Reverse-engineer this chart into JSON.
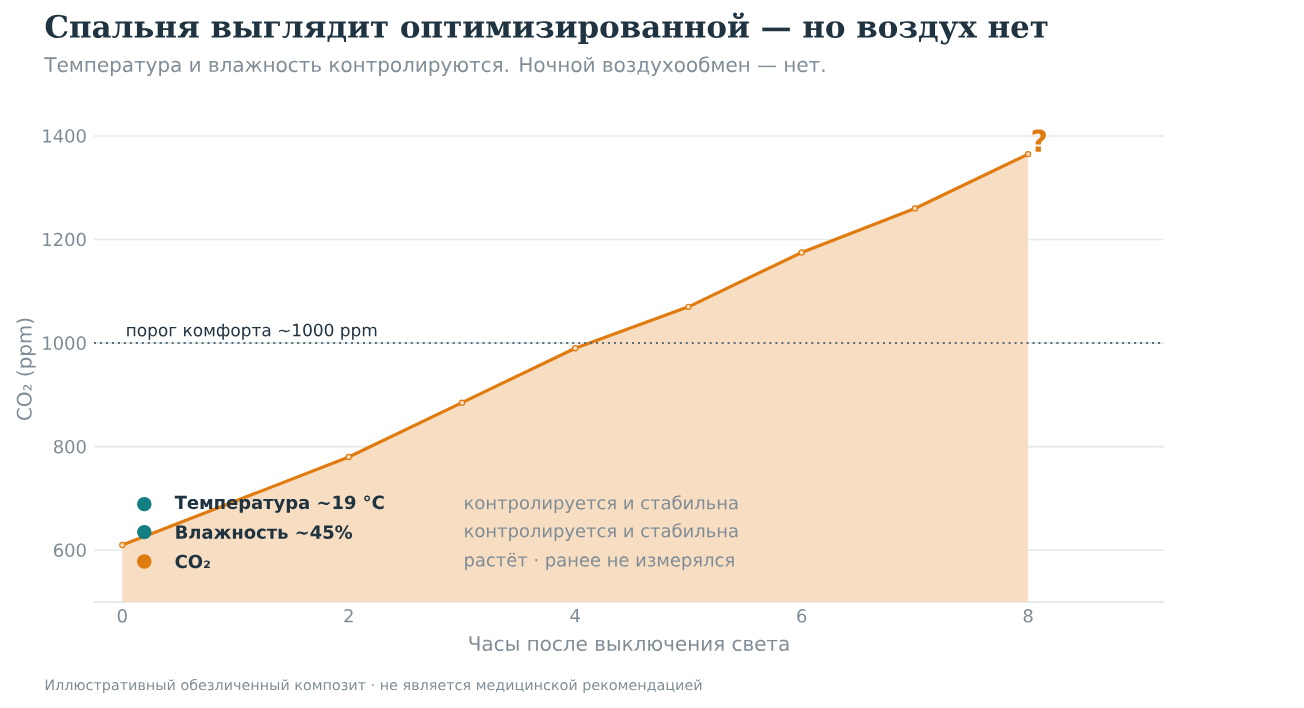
{
  "chart_data": {
    "type": "area",
    "title": "Спальня выглядит оптимизированной — но воздух нет",
    "subtitle": "Температура и влажность контролируются. Ночной воздухообмен — нет.",
    "xlabel": "Часы после выключения света",
    "ylabel": "CO₂ (ppm)",
    "x": [
      0,
      1,
      2,
      3,
      4,
      5,
      6,
      7,
      8
    ],
    "series": [
      {
        "color": "#e07b10",
        "values": [
          610,
          null,
          780,
          885,
          990,
          1070,
          1175,
          1260,
          1365
        ]
      }
    ],
    "xlim": [
      -0.25,
      9.2
    ],
    "ylim": [
      500,
      1400
    ],
    "xticks": [
      0,
      2,
      4,
      6,
      8
    ],
    "yticks": [
      600,
      800,
      1000,
      1200,
      1400
    ],
    "grid": "y",
    "marker": "circle",
    "line_style": "solid",
    "ref_lines": [
      {
        "axis": "y",
        "value": 1000,
        "label": "порог комфорта ~1000 ppm",
        "color": "#5a6b78",
        "line_style": "dotted"
      }
    ],
    "annotations": [
      {
        "text": "?",
        "x": 8,
        "y": 1365
      },
      "Температура ~19 °C",
      "контролируется и стабильна",
      "Влажность ~45%",
      "контролируется и стабильна",
      "CO₂",
      "растёт · ранее не измерялся",
      "Иллюстративный обезличенный композит · не является медицинской рекомендацией"
    ]
  }
}
